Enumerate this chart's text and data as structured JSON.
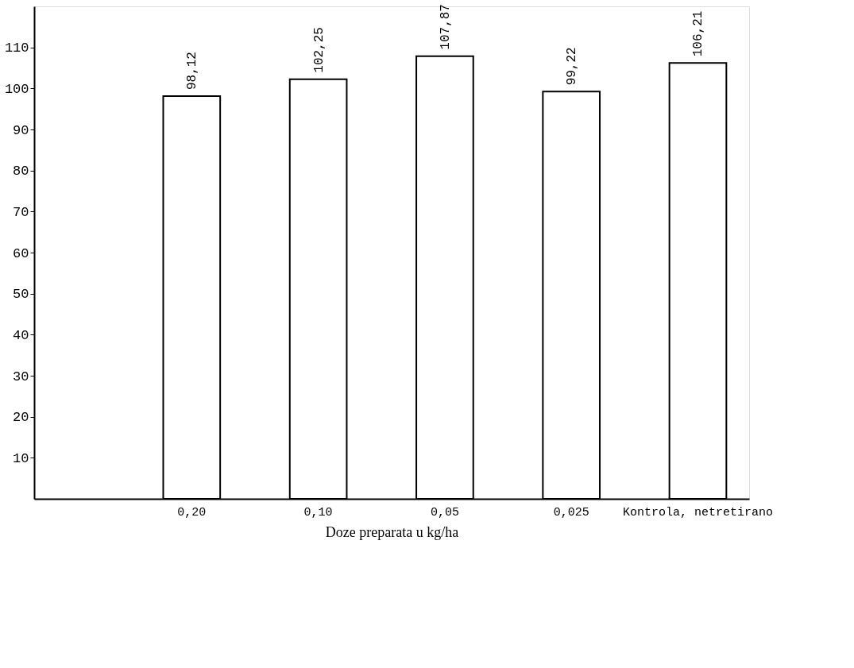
{
  "chart_data": {
    "type": "bar",
    "xlabel": "Doze preparata u kg/ha",
    "categories": [
      "0,20",
      "0,10",
      "0,05",
      "0,025",
      "Kontrola, netretirano"
    ],
    "values": [
      98.12,
      102.25,
      107.87,
      99.22,
      106.21
    ],
    "value_labels": [
      "98,12",
      "102,25",
      "107,87",
      "99,22",
      "106,21"
    ],
    "color": "#ffffff",
    "ylim": [
      0,
      120
    ],
    "yticks": [
      10,
      20,
      30,
      40,
      50,
      60,
      70,
      80,
      90,
      100,
      110
    ],
    "grid": false
  }
}
